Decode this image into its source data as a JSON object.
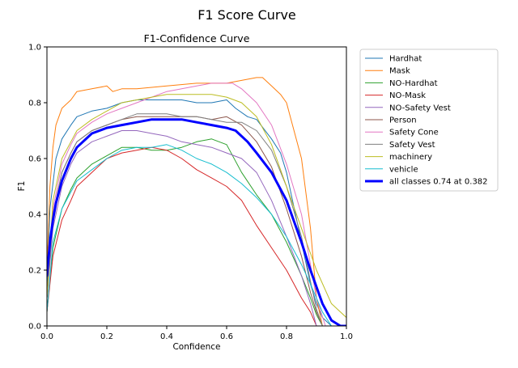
{
  "figure": {
    "title": "F1 Score Curve"
  },
  "chart_data": {
    "type": "line",
    "title": "F1-Confidence Curve",
    "xlabel": "Confidence",
    "ylabel": "F1",
    "xlim": [
      0.0,
      1.0
    ],
    "ylim": [
      0.0,
      1.0
    ],
    "x_ticks": [
      "0.0",
      "0.2",
      "0.4",
      "0.6",
      "0.8",
      "1.0"
    ],
    "y_ticks": [
      "0.0",
      "0.2",
      "0.4",
      "0.6",
      "0.8",
      "1.0"
    ],
    "grid": false,
    "legend": {
      "position": "outside-right"
    },
    "series": [
      {
        "name": "Hardhat",
        "color": "#1f77b4",
        "width": 1,
        "x": [
          0.0,
          0.01,
          0.03,
          0.05,
          0.08,
          0.1,
          0.15,
          0.2,
          0.25,
          0.3,
          0.35,
          0.4,
          0.45,
          0.5,
          0.55,
          0.6,
          0.63,
          0.67,
          0.7,
          0.75,
          0.78,
          0.8,
          0.82,
          0.85,
          0.88,
          0.9,
          0.92,
          0.95
        ],
        "y": [
          0.1,
          0.42,
          0.6,
          0.67,
          0.72,
          0.75,
          0.77,
          0.78,
          0.8,
          0.81,
          0.81,
          0.81,
          0.81,
          0.8,
          0.8,
          0.81,
          0.78,
          0.75,
          0.74,
          0.67,
          0.62,
          0.55,
          0.45,
          0.3,
          0.15,
          0.08,
          0.03,
          0.0
        ]
      },
      {
        "name": "Mask",
        "color": "#ff7f0e",
        "width": 1,
        "x": [
          0.0,
          0.01,
          0.02,
          0.03,
          0.05,
          0.08,
          0.1,
          0.15,
          0.2,
          0.22,
          0.25,
          0.3,
          0.4,
          0.5,
          0.6,
          0.65,
          0.7,
          0.72,
          0.75,
          0.78,
          0.8,
          0.82,
          0.85,
          0.88,
          0.9,
          0.92
        ],
        "y": [
          0.2,
          0.5,
          0.64,
          0.72,
          0.78,
          0.81,
          0.84,
          0.85,
          0.86,
          0.84,
          0.85,
          0.85,
          0.86,
          0.87,
          0.87,
          0.88,
          0.89,
          0.89,
          0.86,
          0.83,
          0.8,
          0.72,
          0.6,
          0.35,
          0.1,
          0.0
        ]
      },
      {
        "name": "NO-Hardhat",
        "color": "#2ca02c",
        "width": 1,
        "x": [
          0.0,
          0.02,
          0.05,
          0.08,
          0.1,
          0.15,
          0.2,
          0.25,
          0.3,
          0.35,
          0.4,
          0.45,
          0.5,
          0.55,
          0.6,
          0.65,
          0.7,
          0.75,
          0.8,
          0.85,
          0.88,
          0.9,
          0.92
        ],
        "y": [
          0.05,
          0.28,
          0.42,
          0.49,
          0.53,
          0.58,
          0.61,
          0.64,
          0.64,
          0.63,
          0.63,
          0.64,
          0.66,
          0.67,
          0.65,
          0.55,
          0.47,
          0.4,
          0.3,
          0.18,
          0.1,
          0.04,
          0.0
        ]
      },
      {
        "name": "NO-Mask",
        "color": "#d62728",
        "width": 1,
        "x": [
          0.0,
          0.02,
          0.05,
          0.08,
          0.1,
          0.15,
          0.2,
          0.25,
          0.3,
          0.35,
          0.4,
          0.45,
          0.5,
          0.55,
          0.6,
          0.65,
          0.7,
          0.75,
          0.8,
          0.85,
          0.88,
          0.9
        ],
        "y": [
          0.05,
          0.25,
          0.38,
          0.45,
          0.5,
          0.55,
          0.6,
          0.62,
          0.63,
          0.64,
          0.63,
          0.6,
          0.56,
          0.53,
          0.5,
          0.45,
          0.36,
          0.28,
          0.2,
          0.1,
          0.05,
          0.0
        ]
      },
      {
        "name": "NO-Safety Vest",
        "color": "#9467bd",
        "width": 1,
        "x": [
          0.0,
          0.02,
          0.05,
          0.08,
          0.1,
          0.15,
          0.2,
          0.25,
          0.3,
          0.35,
          0.4,
          0.45,
          0.5,
          0.55,
          0.6,
          0.65,
          0.7,
          0.75,
          0.8,
          0.85,
          0.88,
          0.9
        ],
        "y": [
          0.1,
          0.35,
          0.5,
          0.58,
          0.62,
          0.66,
          0.68,
          0.7,
          0.7,
          0.69,
          0.68,
          0.66,
          0.65,
          0.64,
          0.62,
          0.6,
          0.55,
          0.45,
          0.32,
          0.18,
          0.08,
          0.0
        ]
      },
      {
        "name": "Person",
        "color": "#8c564b",
        "width": 1,
        "x": [
          0.0,
          0.02,
          0.05,
          0.08,
          0.1,
          0.15,
          0.2,
          0.25,
          0.3,
          0.35,
          0.4,
          0.45,
          0.5,
          0.55,
          0.6,
          0.65,
          0.7,
          0.75,
          0.8,
          0.85,
          0.88,
          0.9,
          0.92
        ],
        "y": [
          0.1,
          0.4,
          0.55,
          0.62,
          0.66,
          0.7,
          0.72,
          0.74,
          0.75,
          0.75,
          0.75,
          0.75,
          0.75,
          0.74,
          0.75,
          0.72,
          0.66,
          0.57,
          0.42,
          0.25,
          0.12,
          0.05,
          0.0
        ]
      },
      {
        "name": "Safety Cone",
        "color": "#e377c2",
        "width": 1,
        "x": [
          0.0,
          0.02,
          0.05,
          0.08,
          0.1,
          0.15,
          0.2,
          0.25,
          0.3,
          0.35,
          0.4,
          0.45,
          0.5,
          0.55,
          0.6,
          0.62,
          0.65,
          0.7,
          0.75,
          0.8,
          0.85,
          0.88,
          0.9,
          0.93
        ],
        "y": [
          0.1,
          0.42,
          0.58,
          0.65,
          0.69,
          0.73,
          0.76,
          0.78,
          0.8,
          0.82,
          0.84,
          0.85,
          0.86,
          0.87,
          0.87,
          0.87,
          0.85,
          0.8,
          0.72,
          0.58,
          0.4,
          0.22,
          0.1,
          0.0
        ]
      },
      {
        "name": "Safety Vest",
        "color": "#7f7f7f",
        "width": 1,
        "x": [
          0.0,
          0.02,
          0.05,
          0.08,
          0.1,
          0.15,
          0.2,
          0.25,
          0.3,
          0.35,
          0.4,
          0.45,
          0.5,
          0.55,
          0.6,
          0.65,
          0.7,
          0.75,
          0.8,
          0.85,
          0.88,
          0.9,
          0.92
        ],
        "y": [
          0.1,
          0.4,
          0.55,
          0.62,
          0.66,
          0.7,
          0.72,
          0.74,
          0.76,
          0.76,
          0.76,
          0.75,
          0.75,
          0.74,
          0.73,
          0.73,
          0.7,
          0.63,
          0.5,
          0.32,
          0.16,
          0.06,
          0.0
        ]
      },
      {
        "name": "machinery",
        "color": "#bcbd22",
        "width": 1,
        "x": [
          0.0,
          0.02,
          0.05,
          0.08,
          0.1,
          0.15,
          0.2,
          0.25,
          0.3,
          0.35,
          0.4,
          0.45,
          0.5,
          0.55,
          0.6,
          0.65,
          0.7,
          0.75,
          0.8,
          0.85,
          0.9,
          0.95,
          1.0
        ],
        "y": [
          0.1,
          0.45,
          0.6,
          0.66,
          0.7,
          0.74,
          0.77,
          0.8,
          0.81,
          0.82,
          0.83,
          0.83,
          0.83,
          0.83,
          0.82,
          0.8,
          0.75,
          0.65,
          0.5,
          0.35,
          0.2,
          0.08,
          0.03
        ]
      },
      {
        "name": "vehicle",
        "color": "#17becf",
        "width": 1,
        "x": [
          0.0,
          0.02,
          0.05,
          0.08,
          0.1,
          0.15,
          0.2,
          0.25,
          0.3,
          0.35,
          0.4,
          0.45,
          0.5,
          0.55,
          0.6,
          0.65,
          0.7,
          0.75,
          0.8,
          0.85,
          0.88,
          0.9,
          0.92,
          0.95
        ],
        "y": [
          0.05,
          0.3,
          0.42,
          0.48,
          0.52,
          0.56,
          0.6,
          0.63,
          0.64,
          0.64,
          0.65,
          0.63,
          0.6,
          0.58,
          0.55,
          0.51,
          0.46,
          0.4,
          0.32,
          0.22,
          0.15,
          0.1,
          0.05,
          0.0
        ]
      },
      {
        "name": "all classes 0.74 at 0.382",
        "color": "#0000ff",
        "width": 3,
        "x": [
          0.0,
          0.01,
          0.02,
          0.03,
          0.05,
          0.08,
          0.1,
          0.15,
          0.2,
          0.25,
          0.3,
          0.35,
          0.382,
          0.45,
          0.5,
          0.55,
          0.6,
          0.63,
          0.67,
          0.7,
          0.75,
          0.8,
          0.85,
          0.88,
          0.9,
          0.92,
          0.95,
          0.98,
          1.0
        ],
        "y": [
          0.18,
          0.3,
          0.38,
          0.44,
          0.52,
          0.6,
          0.64,
          0.69,
          0.71,
          0.72,
          0.73,
          0.74,
          0.74,
          0.74,
          0.73,
          0.72,
          0.71,
          0.7,
          0.66,
          0.62,
          0.55,
          0.45,
          0.3,
          0.2,
          0.14,
          0.08,
          0.02,
          0.0,
          0.0
        ]
      }
    ]
  }
}
